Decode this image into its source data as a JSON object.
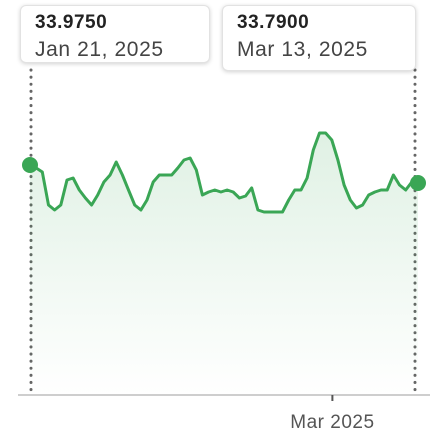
{
  "chart_data": {
    "type": "line",
    "series": [
      {
        "color": "#3aa655",
        "values": [
          33.975,
          33.944,
          33.903,
          33.564,
          33.512,
          33.564,
          33.821,
          33.841,
          33.718,
          33.636,
          33.564,
          33.667,
          33.8,
          33.872,
          34.006,
          33.872,
          33.718,
          33.564,
          33.512,
          33.615,
          33.8,
          33.872,
          33.872,
          33.872,
          33.944,
          34.026,
          34.047,
          33.924,
          33.667,
          33.697,
          33.718,
          33.697,
          33.718,
          33.697,
          33.636,
          33.656,
          33.739,
          33.512,
          33.492,
          33.492,
          33.492,
          33.492,
          33.615,
          33.718,
          33.718,
          33.841,
          34.129,
          34.304,
          34.304,
          34.232,
          34.026,
          33.769,
          33.615,
          33.533,
          33.564,
          33.667,
          33.697,
          33.718,
          33.718,
          33.872,
          33.769,
          33.718,
          33.8,
          33.79
        ]
      }
    ],
    "xlim": [
      0,
      63
    ],
    "xticks": [
      {
        "value": 49.1,
        "label": "Mar 2025"
      }
    ],
    "ylim": [
      31.611,
      35.054
    ],
    "tooltips": [
      {
        "value": 33.975,
        "label": "33.9750",
        "date": "Jan 21, 2025"
      },
      {
        "value": 33.79,
        "label": "33.7900",
        "date": "Mar 13, 2025"
      }
    ]
  }
}
